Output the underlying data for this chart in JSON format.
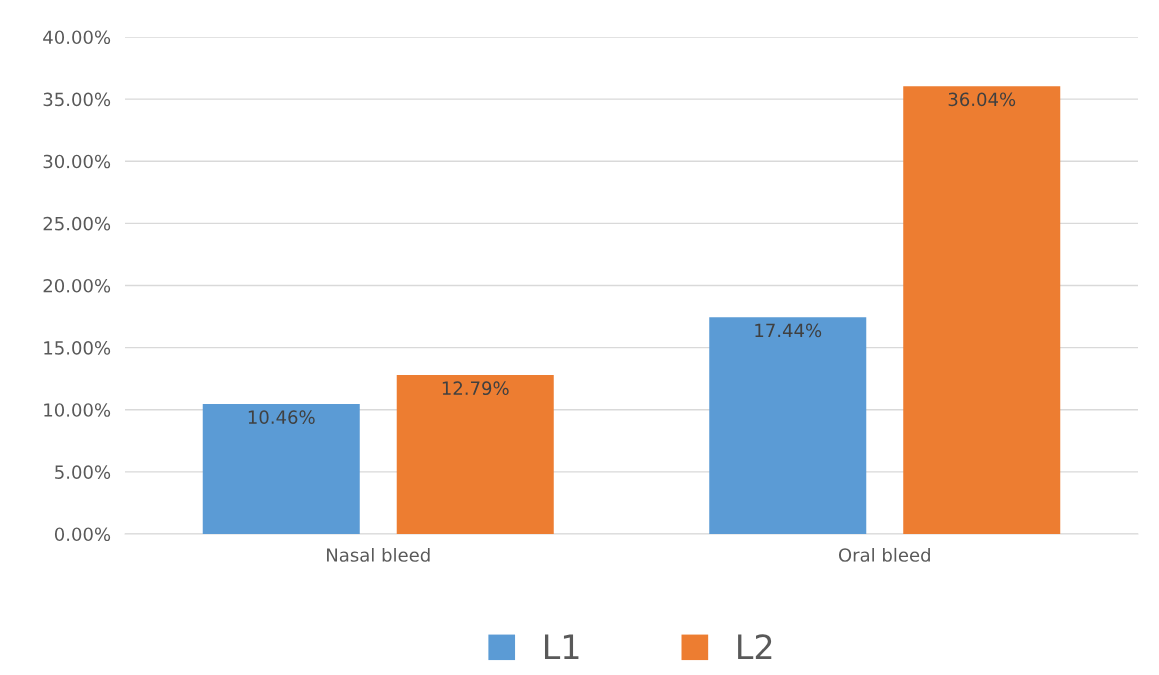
{
  "chart_data": {
    "type": "bar",
    "categories": [
      "Nasal bleed",
      "Oral bleed"
    ],
    "series": [
      {
        "name": "L1",
        "color": "#5b9bd5",
        "values": [
          10.46,
          17.44
        ],
        "value_labels": [
          "10.46%",
          "17.44%"
        ]
      },
      {
        "name": "L2",
        "color": "#ed7d31",
        "values": [
          12.79,
          36.04
        ],
        "value_labels": [
          "12.79%",
          "36.04%"
        ]
      }
    ],
    "ylim": [
      0,
      40
    ],
    "yticks": [
      {
        "value": 0,
        "label": "0.00%"
      },
      {
        "value": 5,
        "label": "5.00%"
      },
      {
        "value": 10,
        "label": "10.00%"
      },
      {
        "value": 15,
        "label": "15.00%"
      },
      {
        "value": 20,
        "label": "20.00%"
      },
      {
        "value": 25,
        "label": "25.00%"
      },
      {
        "value": 30,
        "label": "30.00%"
      },
      {
        "value": 35,
        "label": "35.00%"
      },
      {
        "value": 40,
        "label": "40.00%"
      }
    ],
    "grid": "y",
    "legend": "bottom"
  }
}
